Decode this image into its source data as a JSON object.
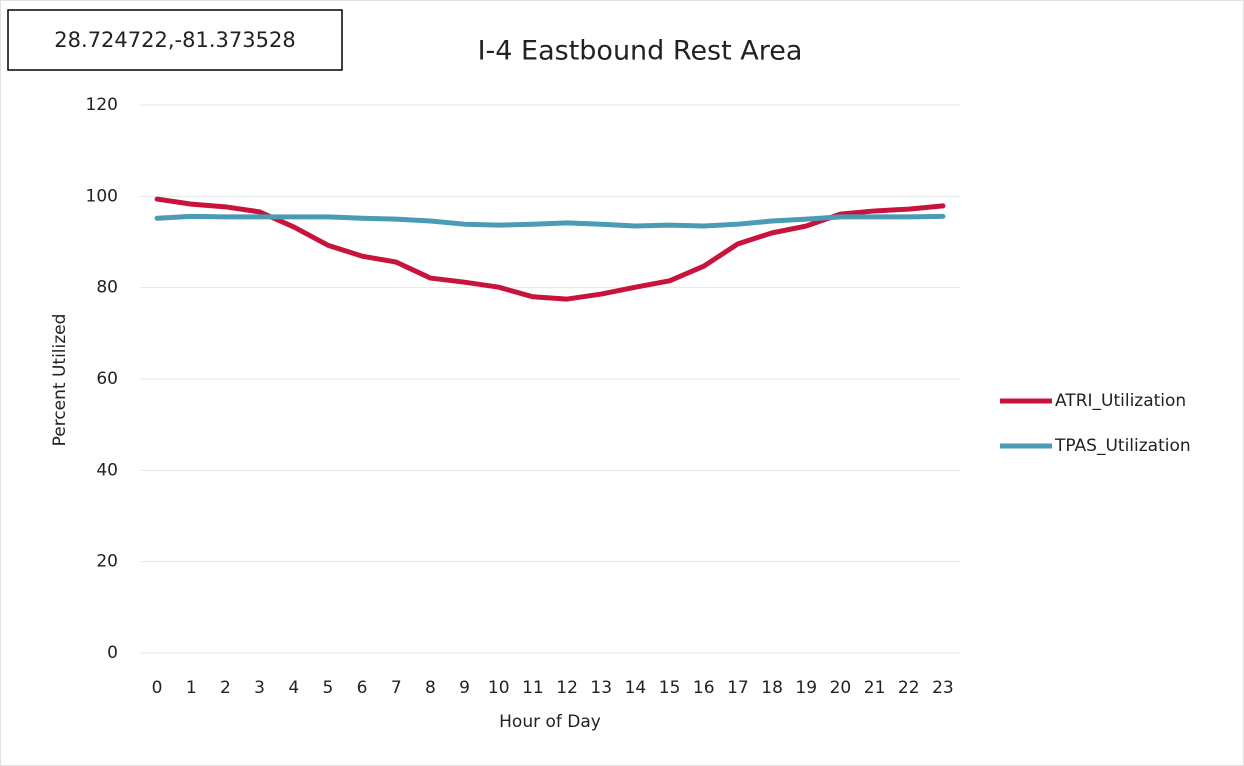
{
  "chart_data": {
    "type": "line",
    "title": "I-4 Eastbound Rest Area",
    "annotation": "28.724722,-81.373528",
    "x_label": "Hour of Day",
    "y_label": "Percent Utilized",
    "categories": [
      "0",
      "1",
      "2",
      "3",
      "4",
      "5",
      "6",
      "7",
      "8",
      "9",
      "10",
      "11",
      "12",
      "13",
      "14",
      "15",
      "16",
      "17",
      "18",
      "19",
      "20",
      "21",
      "22",
      "23"
    ],
    "series": [
      {
        "name": "ATRI_Utilization",
        "color": "#c8143c",
        "values": [
          99.4,
          98.3,
          97.7,
          96.6,
          93.3,
          89.3,
          86.9,
          85.6,
          82.1,
          81.2,
          80.1,
          78.0,
          77.5,
          78.6,
          80.1,
          81.5,
          84.7,
          89.6,
          92.0,
          93.5,
          96.1,
          96.8,
          97.2,
          97.9
        ]
      },
      {
        "name": "TPAS_Utilization",
        "color": "#4a9bb5",
        "values": [
          95.2,
          95.6,
          95.5,
          95.5,
          95.5,
          95.5,
          95.2,
          95.0,
          94.6,
          93.9,
          93.7,
          93.9,
          94.2,
          93.9,
          93.5,
          93.7,
          93.5,
          93.9,
          94.6,
          95.0,
          95.5,
          95.5,
          95.5,
          95.6
        ]
      }
    ],
    "ylim": [
      0,
      120
    ],
    "yticks": [
      0,
      20,
      40,
      60,
      80,
      100,
      120
    ],
    "grid": true,
    "legend": "right"
  }
}
